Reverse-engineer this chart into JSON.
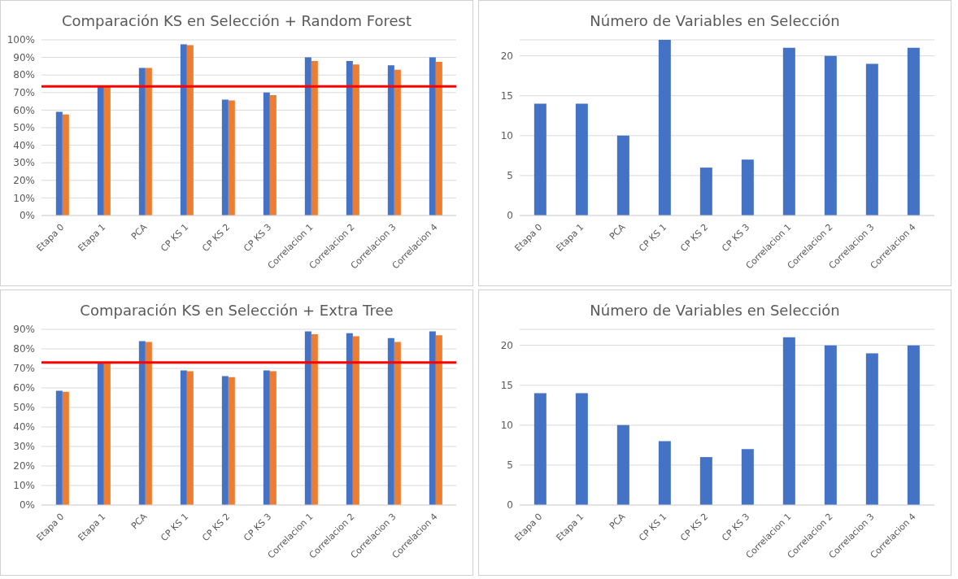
{
  "chart_data": [
    {
      "type": "bar",
      "title": "Comparación KS en Selección + Random Forest",
      "categories": [
        "Etapa 0",
        "Etapa 1",
        "PCA",
        "CP KS 1",
        "CP KS 2",
        "CP KS 3",
        "Correlacion 1",
        "Correlacion 2",
        "Correlacion 3",
        "Correlacion 4"
      ],
      "series": [
        {
          "color": "#4472c4",
          "values": [
            59,
            74,
            84,
            97.5,
            66,
            70,
            90,
            88,
            85.5,
            90
          ]
        },
        {
          "color": "#ed7d31",
          "values": [
            57.5,
            74,
            84,
            97,
            65.5,
            68.5,
            88,
            86,
            83,
            87.5
          ]
        }
      ],
      "ylim": [
        0,
        100
      ],
      "yticks": [
        {
          "value": 0,
          "label": "0%"
        },
        {
          "value": 10,
          "label": "10%"
        },
        {
          "value": 20,
          "label": "20%"
        },
        {
          "value": 30,
          "label": "30%"
        },
        {
          "value": 40,
          "label": "40%"
        },
        {
          "value": 50,
          "label": "50%"
        },
        {
          "value": 60,
          "label": "60%"
        },
        {
          "value": 70,
          "label": "70%"
        },
        {
          "value": 80,
          "label": "80%"
        },
        {
          "value": 90,
          "label": "90%"
        },
        {
          "value": 100,
          "label": "100%"
        }
      ],
      "ref_lines": [
        {
          "axis": "y",
          "value": 73.5,
          "color": "#ff0000"
        }
      ],
      "grid": "y",
      "legend": false
    },
    {
      "type": "bar",
      "title": "Número de Variables en Selección",
      "categories": [
        "Etapa 0",
        "Etapa 1",
        "PCA",
        "CP KS 1",
        "CP KS 2",
        "CP KS 3",
        "Correlacion 1",
        "Correlacion 2",
        "Correlacion 3",
        "Correlacion 4"
      ],
      "series": [
        {
          "color": "#4472c4",
          "values": [
            14,
            14,
            10,
            22,
            6,
            7,
            21,
            20,
            19,
            21
          ]
        }
      ],
      "ylim": [
        0,
        22
      ],
      "yticks": [
        0,
        5,
        10,
        15,
        20
      ],
      "grid": "y",
      "legend": false
    },
    {
      "type": "bar",
      "title": "Comparación KS en Selección + Extra Tree",
      "categories": [
        "Etapa 0",
        "Etapa 1",
        "PCA",
        "CP KS 1",
        "CP KS 2",
        "CP KS 3",
        "Correlacion 1",
        "Correlacion 2",
        "Correlacion 3",
        "Correlacion 4"
      ],
      "series": [
        {
          "color": "#4472c4",
          "values": [
            58.5,
            73,
            84,
            69,
            66,
            69,
            89,
            88,
            85.5,
            89
          ]
        },
        {
          "color": "#ed7d31",
          "values": [
            58,
            73,
            83.5,
            68.5,
            65.5,
            68.5,
            87.5,
            86.5,
            83.5,
            87
          ]
        }
      ],
      "ylim": [
        0,
        90
      ],
      "yticks": [
        {
          "value": 0,
          "label": "0%"
        },
        {
          "value": 10,
          "label": "10%"
        },
        {
          "value": 20,
          "label": "20%"
        },
        {
          "value": 30,
          "label": "30%"
        },
        {
          "value": 40,
          "label": "40%"
        },
        {
          "value": 50,
          "label": "50%"
        },
        {
          "value": 60,
          "label": "60%"
        },
        {
          "value": 70,
          "label": "70%"
        },
        {
          "value": 80,
          "label": "80%"
        },
        {
          "value": 90,
          "label": "90%"
        }
      ],
      "ref_lines": [
        {
          "axis": "y",
          "value": 73,
          "color": "#ff0000"
        }
      ],
      "grid": "y",
      "legend": false
    },
    {
      "type": "bar",
      "title": "Número de Variables en Selección",
      "categories": [
        "Etapa 0",
        "Etapa 1",
        "PCA",
        "CP KS 1",
        "CP KS 2",
        "CP KS 3",
        "Correlacion 1",
        "Correlacion 2",
        "Correlacion 3",
        "Correlacion 4"
      ],
      "series": [
        {
          "color": "#4472c4",
          "values": [
            14,
            14,
            10,
            8,
            6,
            7,
            21,
            20,
            19,
            20
          ]
        }
      ],
      "ylim": [
        0,
        22
      ],
      "yticks": [
        0,
        5,
        10,
        15,
        20
      ],
      "grid": "y",
      "legend": false
    }
  ]
}
